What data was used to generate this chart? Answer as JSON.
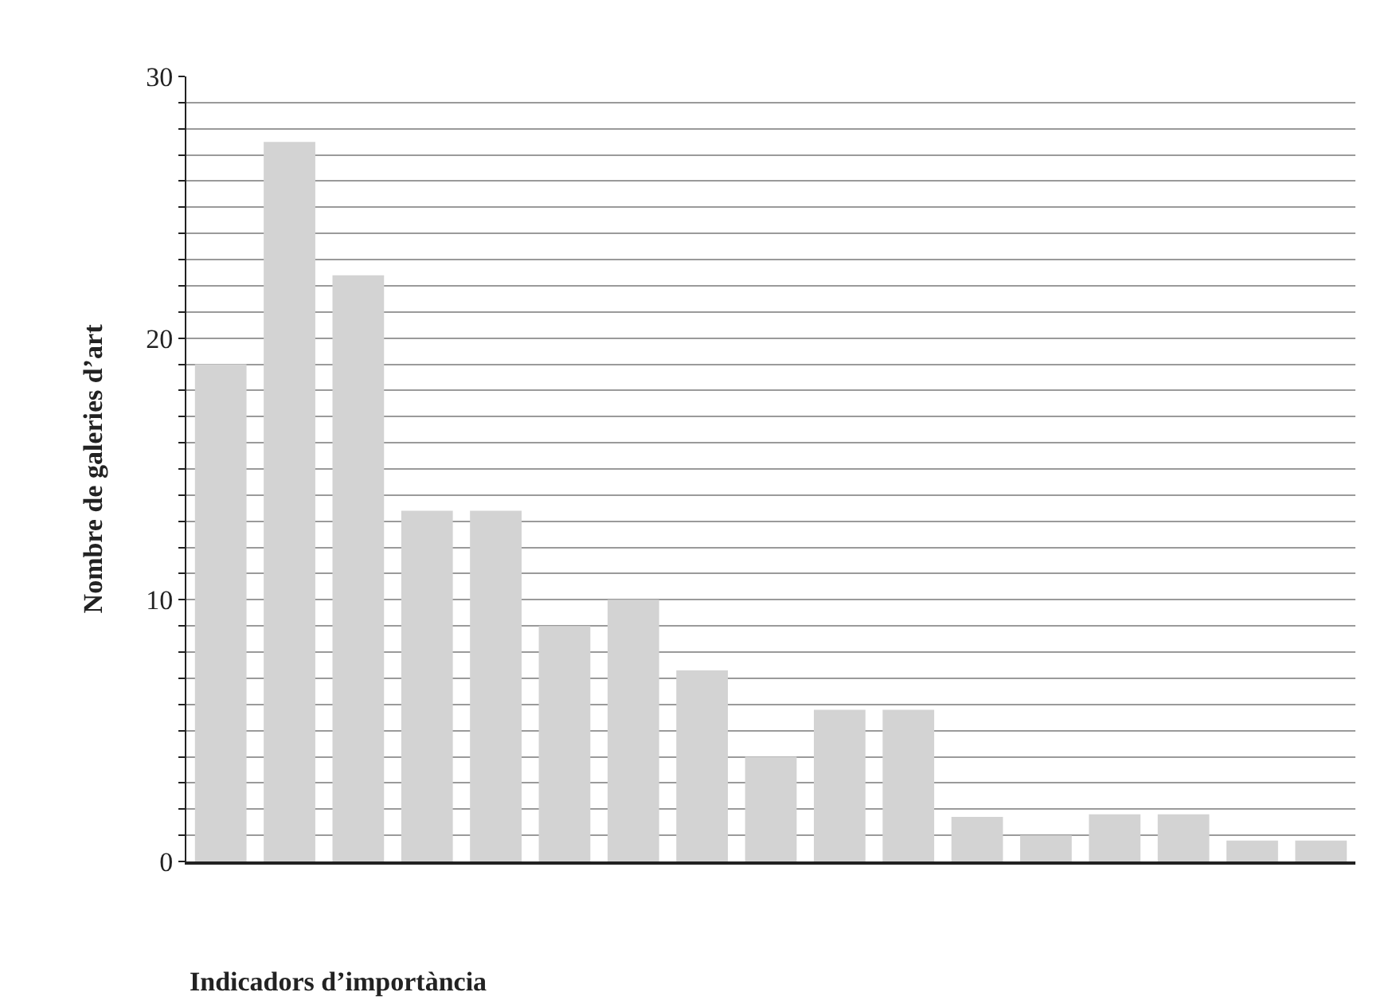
{
  "chart_data": {
    "type": "bar",
    "xlabel": "Indicadors d’importància",
    "ylabel": "Nombre de galeries d’art",
    "categories": [
      null,
      null,
      null,
      null,
      null,
      null,
      null,
      null,
      null,
      null,
      null,
      null,
      null,
      null,
      null,
      null,
      null
    ],
    "values": [
      19,
      27.5,
      22.4,
      13.4,
      13.4,
      9,
      10,
      7.3,
      4,
      5.8,
      5.8,
      1.7,
      1,
      1.8,
      1.8,
      0.8,
      0.8
    ],
    "color": "#d3d3d3",
    "ylim": [
      0,
      30
    ],
    "yticks": [
      0,
      {
        "value": 1,
        "label": null
      },
      {
        "value": 2,
        "label": null
      },
      {
        "value": 3,
        "label": null
      },
      {
        "value": 4,
        "label": null
      },
      {
        "value": 5,
        "label": null
      },
      {
        "value": 6,
        "label": null
      },
      {
        "value": 7,
        "label": null
      },
      {
        "value": 8,
        "label": null
      },
      {
        "value": 9,
        "label": null
      },
      10,
      {
        "value": 11,
        "label": null
      },
      {
        "value": 12,
        "label": null
      },
      {
        "value": 13,
        "label": null
      },
      {
        "value": 14,
        "label": null
      },
      {
        "value": 15,
        "label": null
      },
      {
        "value": 16,
        "label": null
      },
      {
        "value": 17,
        "label": null
      },
      {
        "value": 18,
        "label": null
      },
      {
        "value": 19,
        "label": null
      },
      20,
      {
        "value": 21,
        "label": null
      },
      {
        "value": 22,
        "label": null
      },
      {
        "value": 23,
        "label": null
      },
      {
        "value": 24,
        "label": null
      },
      {
        "value": 25,
        "label": null
      },
      {
        "value": 26,
        "label": null
      },
      {
        "value": 27,
        "label": null
      },
      {
        "value": 28,
        "label": null
      },
      {
        "value": 29,
        "label": null
      },
      30
    ],
    "grid": "y",
    "legend": false
  }
}
